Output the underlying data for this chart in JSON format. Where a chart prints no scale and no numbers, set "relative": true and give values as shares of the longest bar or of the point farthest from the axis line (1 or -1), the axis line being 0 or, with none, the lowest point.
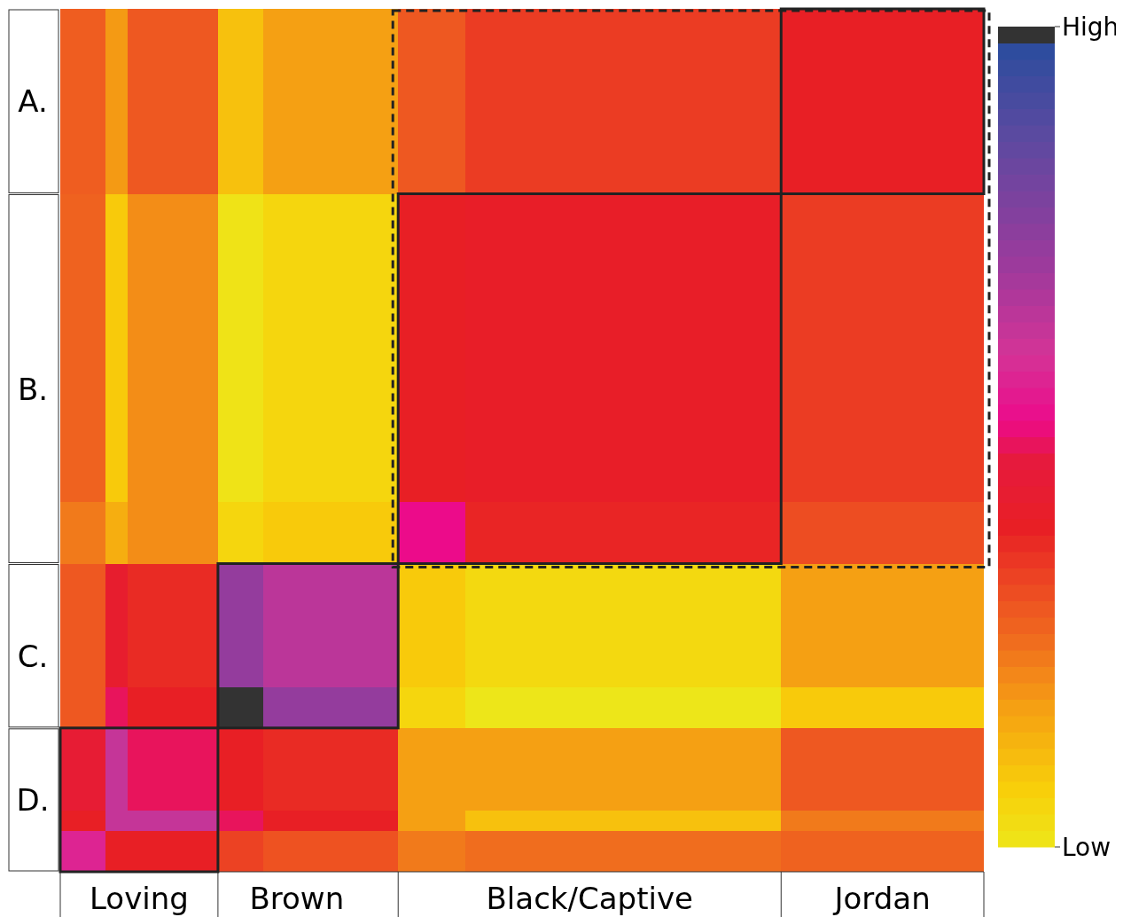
{
  "chart_data": {
    "type": "heatmap",
    "relative": true,
    "clim": [
      0,
      1
    ],
    "cticks": [
      {
        "value": 0,
        "label": "Low"
      },
      {
        "value": 1,
        "label": "High"
      }
    ],
    "categories": [
      null,
      null,
      null,
      "Loving",
      null,
      null,
      null,
      null,
      null,
      null,
      "Brown",
      null,
      null,
      null,
      null,
      null,
      null,
      null,
      null,
      null,
      null,
      null,
      null,
      "Black/Captive",
      null,
      null,
      null,
      null,
      null,
      null,
      null,
      null,
      null,
      null,
      null,
      null,
      "Jordan",
      null,
      null,
      null,
      null
    ],
    "y_categories": [
      null,
      null,
      null,
      null,
      "A.",
      null,
      null,
      null,
      null,
      null,
      null,
      null,
      null,
      null,
      null,
      null,
      null,
      null,
      "B.",
      null,
      null,
      null,
      null,
      null,
      null,
      null,
      null,
      null,
      null,
      null,
      null,
      "C.",
      null,
      null,
      null,
      null,
      null,
      null,
      "D.",
      null,
      null,
      null
    ],
    "cells": [
      [
        0.28,
        0.28,
        0.18,
        0.29,
        0.29,
        0.29,
        0.29,
        0.1,
        0.1,
        0.17,
        0.17,
        0.17,
        0.17,
        0.17,
        0.17,
        0.29,
        0.29,
        0.29,
        0.34,
        0.34,
        0.34,
        0.34,
        0.34,
        0.34,
        0.34,
        0.34,
        0.34,
        0.34,
        0.34,
        0.34,
        0.34,
        0.34,
        0.39,
        0.39,
        0.39,
        0.39,
        0.39,
        0.39,
        0.39,
        0.39,
        0.39
      ],
      [
        0.28,
        0.28,
        0.18,
        0.29,
        0.29,
        0.29,
        0.29,
        0.1,
        0.1,
        0.17,
        0.17,
        0.17,
        0.17,
        0.17,
        0.17,
        0.29,
        0.29,
        0.29,
        0.34,
        0.34,
        0.34,
        0.34,
        0.34,
        0.34,
        0.34,
        0.34,
        0.34,
        0.34,
        0.34,
        0.34,
        0.34,
        0.34,
        0.39,
        0.39,
        0.39,
        0.39,
        0.39,
        0.39,
        0.39,
        0.39,
        0.39
      ],
      [
        0.28,
        0.28,
        0.18,
        0.29,
        0.29,
        0.29,
        0.29,
        0.1,
        0.1,
        0.17,
        0.17,
        0.17,
        0.17,
        0.17,
        0.17,
        0.29,
        0.29,
        0.29,
        0.34,
        0.34,
        0.34,
        0.34,
        0.34,
        0.34,
        0.34,
        0.34,
        0.34,
        0.34,
        0.34,
        0.34,
        0.34,
        0.34,
        0.39,
        0.39,
        0.39,
        0.39,
        0.39,
        0.39,
        0.39,
        0.39,
        0.39
      ],
      [
        0.28,
        0.28,
        0.18,
        0.29,
        0.29,
        0.29,
        0.29,
        0.1,
        0.1,
        0.17,
        0.17,
        0.17,
        0.17,
        0.17,
        0.17,
        0.29,
        0.29,
        0.29,
        0.34,
        0.34,
        0.34,
        0.34,
        0.34,
        0.34,
        0.34,
        0.34,
        0.34,
        0.34,
        0.34,
        0.34,
        0.34,
        0.34,
        0.39,
        0.39,
        0.39,
        0.39,
        0.39,
        0.39,
        0.39,
        0.39,
        0.39
      ],
      [
        0.28,
        0.28,
        0.18,
        0.29,
        0.29,
        0.29,
        0.29,
        0.1,
        0.1,
        0.17,
        0.17,
        0.17,
        0.17,
        0.17,
        0.17,
        0.29,
        0.29,
        0.29,
        0.34,
        0.34,
        0.34,
        0.34,
        0.34,
        0.34,
        0.34,
        0.34,
        0.34,
        0.34,
        0.34,
        0.34,
        0.34,
        0.34,
        0.39,
        0.39,
        0.39,
        0.39,
        0.39,
        0.39,
        0.39,
        0.39,
        0.39
      ],
      [
        0.28,
        0.28,
        0.18,
        0.29,
        0.29,
        0.29,
        0.29,
        0.1,
        0.1,
        0.17,
        0.17,
        0.17,
        0.17,
        0.17,
        0.17,
        0.29,
        0.29,
        0.29,
        0.34,
        0.34,
        0.34,
        0.34,
        0.34,
        0.34,
        0.34,
        0.34,
        0.34,
        0.34,
        0.34,
        0.34,
        0.34,
        0.34,
        0.39,
        0.39,
        0.39,
        0.39,
        0.39,
        0.39,
        0.39,
        0.39,
        0.39
      ],
      [
        0.28,
        0.28,
        0.18,
        0.29,
        0.29,
        0.29,
        0.29,
        0.1,
        0.1,
        0.17,
        0.17,
        0.17,
        0.17,
        0.17,
        0.17,
        0.29,
        0.29,
        0.29,
        0.34,
        0.34,
        0.34,
        0.34,
        0.34,
        0.34,
        0.34,
        0.34,
        0.34,
        0.34,
        0.34,
        0.34,
        0.34,
        0.34,
        0.39,
        0.39,
        0.39,
        0.39,
        0.39,
        0.39,
        0.39,
        0.39,
        0.39
      ],
      [
        0.28,
        0.28,
        0.18,
        0.29,
        0.29,
        0.29,
        0.29,
        0.1,
        0.1,
        0.17,
        0.17,
        0.17,
        0.17,
        0.17,
        0.17,
        0.29,
        0.29,
        0.29,
        0.34,
        0.34,
        0.34,
        0.34,
        0.34,
        0.34,
        0.34,
        0.34,
        0.34,
        0.34,
        0.34,
        0.34,
        0.34,
        0.34,
        0.39,
        0.39,
        0.39,
        0.39,
        0.39,
        0.39,
        0.39,
        0.39,
        0.39
      ],
      [
        0.28,
        0.28,
        0.18,
        0.29,
        0.29,
        0.29,
        0.29,
        0.1,
        0.1,
        0.17,
        0.17,
        0.17,
        0.17,
        0.17,
        0.17,
        0.29,
        0.29,
        0.29,
        0.34,
        0.34,
        0.34,
        0.34,
        0.34,
        0.34,
        0.34,
        0.34,
        0.34,
        0.34,
        0.34,
        0.34,
        0.34,
        0.34,
        0.39,
        0.39,
        0.39,
        0.39,
        0.39,
        0.39,
        0.39,
        0.39,
        0.39
      ],
      [
        0.27,
        0.27,
        0.08,
        0.2,
        0.2,
        0.2,
        0.2,
        0.01,
        0.01,
        0.05,
        0.05,
        0.05,
        0.05,
        0.05,
        0.05,
        0.39,
        0.39,
        0.39,
        0.4,
        0.4,
        0.4,
        0.4,
        0.4,
        0.4,
        0.4,
        0.4,
        0.4,
        0.4,
        0.4,
        0.4,
        0.4,
        0.4,
        0.34,
        0.34,
        0.34,
        0.34,
        0.34,
        0.34,
        0.34,
        0.34,
        0.34
      ],
      [
        0.27,
        0.27,
        0.08,
        0.2,
        0.2,
        0.2,
        0.2,
        0.01,
        0.01,
        0.05,
        0.05,
        0.05,
        0.05,
        0.05,
        0.05,
        0.39,
        0.39,
        0.39,
        0.4,
        0.4,
        0.4,
        0.4,
        0.4,
        0.4,
        0.4,
        0.4,
        0.4,
        0.4,
        0.4,
        0.4,
        0.4,
        0.4,
        0.34,
        0.34,
        0.34,
        0.34,
        0.34,
        0.34,
        0.34,
        0.34,
        0.34
      ],
      [
        0.27,
        0.27,
        0.08,
        0.2,
        0.2,
        0.2,
        0.2,
        0.01,
        0.01,
        0.05,
        0.05,
        0.05,
        0.05,
        0.05,
        0.05,
        0.39,
        0.39,
        0.39,
        0.4,
        0.4,
        0.4,
        0.4,
        0.4,
        0.4,
        0.4,
        0.4,
        0.4,
        0.4,
        0.4,
        0.4,
        0.4,
        0.4,
        0.34,
        0.34,
        0.34,
        0.34,
        0.34,
        0.34,
        0.34,
        0.34,
        0.34
      ],
      [
        0.27,
        0.27,
        0.08,
        0.2,
        0.2,
        0.2,
        0.2,
        0.01,
        0.01,
        0.05,
        0.05,
        0.05,
        0.05,
        0.05,
        0.05,
        0.39,
        0.39,
        0.39,
        0.4,
        0.4,
        0.4,
        0.4,
        0.4,
        0.4,
        0.4,
        0.4,
        0.4,
        0.4,
        0.4,
        0.4,
        0.4,
        0.4,
        0.34,
        0.34,
        0.34,
        0.34,
        0.34,
        0.34,
        0.34,
        0.34,
        0.34
      ],
      [
        0.27,
        0.27,
        0.08,
        0.2,
        0.2,
        0.2,
        0.2,
        0.01,
        0.01,
        0.05,
        0.05,
        0.05,
        0.05,
        0.05,
        0.05,
        0.39,
        0.39,
        0.39,
        0.4,
        0.4,
        0.4,
        0.4,
        0.4,
        0.4,
        0.4,
        0.4,
        0.4,
        0.4,
        0.4,
        0.4,
        0.4,
        0.4,
        0.34,
        0.34,
        0.34,
        0.34,
        0.34,
        0.34,
        0.34,
        0.34,
        0.34
      ],
      [
        0.27,
        0.27,
        0.08,
        0.2,
        0.2,
        0.2,
        0.2,
        0.01,
        0.01,
        0.05,
        0.05,
        0.05,
        0.05,
        0.05,
        0.05,
        0.39,
        0.39,
        0.39,
        0.4,
        0.4,
        0.4,
        0.4,
        0.4,
        0.4,
        0.4,
        0.4,
        0.4,
        0.4,
        0.4,
        0.4,
        0.4,
        0.4,
        0.34,
        0.34,
        0.34,
        0.34,
        0.34,
        0.34,
        0.34,
        0.34,
        0.34
      ],
      [
        0.27,
        0.27,
        0.08,
        0.2,
        0.2,
        0.2,
        0.2,
        0.01,
        0.01,
        0.05,
        0.05,
        0.05,
        0.05,
        0.05,
        0.05,
        0.39,
        0.39,
        0.39,
        0.4,
        0.4,
        0.4,
        0.4,
        0.4,
        0.4,
        0.4,
        0.4,
        0.4,
        0.4,
        0.4,
        0.4,
        0.4,
        0.4,
        0.34,
        0.34,
        0.34,
        0.34,
        0.34,
        0.34,
        0.34,
        0.34,
        0.34
      ],
      [
        0.27,
        0.27,
        0.08,
        0.2,
        0.2,
        0.2,
        0.2,
        0.01,
        0.01,
        0.05,
        0.05,
        0.05,
        0.05,
        0.05,
        0.05,
        0.39,
        0.39,
        0.39,
        0.4,
        0.4,
        0.4,
        0.4,
        0.4,
        0.4,
        0.4,
        0.4,
        0.4,
        0.4,
        0.4,
        0.4,
        0.4,
        0.4,
        0.34,
        0.34,
        0.34,
        0.34,
        0.34,
        0.34,
        0.34,
        0.34,
        0.34
      ],
      [
        0.27,
        0.27,
        0.08,
        0.2,
        0.2,
        0.2,
        0.2,
        0.01,
        0.01,
        0.05,
        0.05,
        0.05,
        0.05,
        0.05,
        0.05,
        0.39,
        0.39,
        0.39,
        0.4,
        0.4,
        0.4,
        0.4,
        0.4,
        0.4,
        0.4,
        0.4,
        0.4,
        0.4,
        0.4,
        0.4,
        0.4,
        0.4,
        0.34,
        0.34,
        0.34,
        0.34,
        0.34,
        0.34,
        0.34,
        0.34,
        0.34
      ],
      [
        0.27,
        0.27,
        0.08,
        0.2,
        0.2,
        0.2,
        0.2,
        0.01,
        0.01,
        0.05,
        0.05,
        0.05,
        0.05,
        0.05,
        0.05,
        0.39,
        0.39,
        0.39,
        0.4,
        0.4,
        0.4,
        0.4,
        0.4,
        0.4,
        0.4,
        0.4,
        0.4,
        0.4,
        0.4,
        0.4,
        0.4,
        0.4,
        0.34,
        0.34,
        0.34,
        0.34,
        0.34,
        0.34,
        0.34,
        0.34,
        0.34
      ],
      [
        0.27,
        0.27,
        0.08,
        0.2,
        0.2,
        0.2,
        0.2,
        0.01,
        0.01,
        0.05,
        0.05,
        0.05,
        0.05,
        0.05,
        0.05,
        0.39,
        0.39,
        0.39,
        0.4,
        0.4,
        0.4,
        0.4,
        0.4,
        0.4,
        0.4,
        0.4,
        0.4,
        0.4,
        0.4,
        0.4,
        0.4,
        0.4,
        0.34,
        0.34,
        0.34,
        0.34,
        0.34,
        0.34,
        0.34,
        0.34,
        0.34
      ],
      [
        0.27,
        0.27,
        0.08,
        0.2,
        0.2,
        0.2,
        0.2,
        0.01,
        0.01,
        0.05,
        0.05,
        0.05,
        0.05,
        0.05,
        0.05,
        0.39,
        0.39,
        0.39,
        0.4,
        0.4,
        0.4,
        0.4,
        0.4,
        0.4,
        0.4,
        0.4,
        0.4,
        0.4,
        0.4,
        0.4,
        0.4,
        0.4,
        0.34,
        0.34,
        0.34,
        0.34,
        0.34,
        0.34,
        0.34,
        0.34,
        0.34
      ],
      [
        0.27,
        0.27,
        0.08,
        0.2,
        0.2,
        0.2,
        0.2,
        0.01,
        0.01,
        0.05,
        0.05,
        0.05,
        0.05,
        0.05,
        0.05,
        0.39,
        0.39,
        0.39,
        0.4,
        0.4,
        0.4,
        0.4,
        0.4,
        0.4,
        0.4,
        0.4,
        0.4,
        0.4,
        0.4,
        0.4,
        0.4,
        0.4,
        0.34,
        0.34,
        0.34,
        0.34,
        0.34,
        0.34,
        0.34,
        0.34,
        0.34
      ],
      [
        0.27,
        0.27,
        0.08,
        0.2,
        0.2,
        0.2,
        0.2,
        0.01,
        0.01,
        0.05,
        0.05,
        0.05,
        0.05,
        0.05,
        0.05,
        0.39,
        0.39,
        0.39,
        0.4,
        0.4,
        0.4,
        0.4,
        0.4,
        0.4,
        0.4,
        0.4,
        0.4,
        0.4,
        0.4,
        0.4,
        0.4,
        0.4,
        0.34,
        0.34,
        0.34,
        0.34,
        0.34,
        0.34,
        0.34,
        0.34,
        0.34
      ],
      [
        0.27,
        0.27,
        0.08,
        0.2,
        0.2,
        0.2,
        0.2,
        0.01,
        0.01,
        0.05,
        0.05,
        0.05,
        0.05,
        0.05,
        0.05,
        0.39,
        0.39,
        0.39,
        0.4,
        0.4,
        0.4,
        0.4,
        0.4,
        0.4,
        0.4,
        0.4,
        0.4,
        0.4,
        0.4,
        0.4,
        0.4,
        0.4,
        0.34,
        0.34,
        0.34,
        0.34,
        0.34,
        0.34,
        0.34,
        0.34,
        0.34
      ],
      [
        0.23,
        0.23,
        0.14,
        0.2,
        0.2,
        0.2,
        0.2,
        0.05,
        0.05,
        0.08,
        0.08,
        0.08,
        0.08,
        0.08,
        0.08,
        0.52,
        0.52,
        0.52,
        0.38,
        0.38,
        0.38,
        0.38,
        0.38,
        0.38,
        0.38,
        0.38,
        0.38,
        0.38,
        0.38,
        0.38,
        0.38,
        0.38,
        0.31,
        0.31,
        0.31,
        0.31,
        0.31,
        0.31,
        0.31,
        0.31,
        0.31
      ],
      [
        0.23,
        0.23,
        0.14,
        0.2,
        0.2,
        0.2,
        0.2,
        0.05,
        0.05,
        0.08,
        0.08,
        0.08,
        0.08,
        0.08,
        0.08,
        0.52,
        0.52,
        0.52,
        0.38,
        0.38,
        0.38,
        0.38,
        0.38,
        0.38,
        0.38,
        0.38,
        0.38,
        0.38,
        0.38,
        0.38,
        0.38,
        0.38,
        0.31,
        0.31,
        0.31,
        0.31,
        0.31,
        0.31,
        0.31,
        0.31,
        0.31
      ],
      [
        0.23,
        0.23,
        0.14,
        0.2,
        0.2,
        0.2,
        0.2,
        0.05,
        0.05,
        0.08,
        0.08,
        0.08,
        0.08,
        0.08,
        0.08,
        0.52,
        0.52,
        0.52,
        0.38,
        0.38,
        0.38,
        0.38,
        0.38,
        0.38,
        0.38,
        0.38,
        0.38,
        0.38,
        0.38,
        0.38,
        0.38,
        0.38,
        0.31,
        0.31,
        0.31,
        0.31,
        0.31,
        0.31,
        0.31,
        0.31,
        0.31
      ],
      [
        0.29,
        0.29,
        0.42,
        0.37,
        0.37,
        0.37,
        0.37,
        0.73,
        0.73,
        0.65,
        0.65,
        0.65,
        0.65,
        0.65,
        0.65,
        0.08,
        0.08,
        0.08,
        0.04,
        0.04,
        0.04,
        0.04,
        0.04,
        0.04,
        0.04,
        0.04,
        0.04,
        0.04,
        0.04,
        0.04,
        0.04,
        0.04,
        0.17,
        0.17,
        0.17,
        0.17,
        0.17,
        0.17,
        0.17,
        0.17,
        0.17
      ],
      [
        0.29,
        0.29,
        0.42,
        0.37,
        0.37,
        0.37,
        0.37,
        0.73,
        0.73,
        0.65,
        0.65,
        0.65,
        0.65,
        0.65,
        0.65,
        0.08,
        0.08,
        0.08,
        0.04,
        0.04,
        0.04,
        0.04,
        0.04,
        0.04,
        0.04,
        0.04,
        0.04,
        0.04,
        0.04,
        0.04,
        0.04,
        0.04,
        0.17,
        0.17,
        0.17,
        0.17,
        0.17,
        0.17,
        0.17,
        0.17,
        0.17
      ],
      [
        0.29,
        0.29,
        0.42,
        0.37,
        0.37,
        0.37,
        0.37,
        0.73,
        0.73,
        0.65,
        0.65,
        0.65,
        0.65,
        0.65,
        0.65,
        0.08,
        0.08,
        0.08,
        0.04,
        0.04,
        0.04,
        0.04,
        0.04,
        0.04,
        0.04,
        0.04,
        0.04,
        0.04,
        0.04,
        0.04,
        0.04,
        0.04,
        0.17,
        0.17,
        0.17,
        0.17,
        0.17,
        0.17,
        0.17,
        0.17,
        0.17
      ],
      [
        0.29,
        0.29,
        0.42,
        0.37,
        0.37,
        0.37,
        0.37,
        0.73,
        0.73,
        0.65,
        0.65,
        0.65,
        0.65,
        0.65,
        0.65,
        0.08,
        0.08,
        0.08,
        0.04,
        0.04,
        0.04,
        0.04,
        0.04,
        0.04,
        0.04,
        0.04,
        0.04,
        0.04,
        0.04,
        0.04,
        0.04,
        0.04,
        0.17,
        0.17,
        0.17,
        0.17,
        0.17,
        0.17,
        0.17,
        0.17,
        0.17
      ],
      [
        0.29,
        0.29,
        0.42,
        0.37,
        0.37,
        0.37,
        0.37,
        0.73,
        0.73,
        0.65,
        0.65,
        0.65,
        0.65,
        0.65,
        0.65,
        0.08,
        0.08,
        0.08,
        0.04,
        0.04,
        0.04,
        0.04,
        0.04,
        0.04,
        0.04,
        0.04,
        0.04,
        0.04,
        0.04,
        0.04,
        0.04,
        0.04,
        0.17,
        0.17,
        0.17,
        0.17,
        0.17,
        0.17,
        0.17,
        0.17,
        0.17
      ],
      [
        0.29,
        0.29,
        0.42,
        0.37,
        0.37,
        0.37,
        0.37,
        0.73,
        0.73,
        0.65,
        0.65,
        0.65,
        0.65,
        0.65,
        0.65,
        0.08,
        0.08,
        0.08,
        0.04,
        0.04,
        0.04,
        0.04,
        0.04,
        0.04,
        0.04,
        0.04,
        0.04,
        0.04,
        0.04,
        0.04,
        0.04,
        0.04,
        0.17,
        0.17,
        0.17,
        0.17,
        0.17,
        0.17,
        0.17,
        0.17,
        0.17
      ],
      [
        0.29,
        0.29,
        0.49,
        0.39,
        0.39,
        0.39,
        0.39,
        1.0,
        1.0,
        0.73,
        0.73,
        0.73,
        0.73,
        0.73,
        0.73,
        0.05,
        0.05,
        0.05,
        0.0,
        0.0,
        0.0,
        0.0,
        0.0,
        0.0,
        0.0,
        0.0,
        0.0,
        0.0,
        0.0,
        0.0,
        0.0,
        0.0,
        0.08,
        0.08,
        0.08,
        0.08,
        0.08,
        0.08,
        0.08,
        0.08,
        0.08
      ],
      [
        0.29,
        0.29,
        0.49,
        0.39,
        0.39,
        0.39,
        0.39,
        1.0,
        1.0,
        0.73,
        0.73,
        0.73,
        0.73,
        0.73,
        0.73,
        0.05,
        0.05,
        0.05,
        0.0,
        0.0,
        0.0,
        0.0,
        0.0,
        0.0,
        0.0,
        0.0,
        0.0,
        0.0,
        0.0,
        0.0,
        0.0,
        0.0,
        0.08,
        0.08,
        0.08,
        0.08,
        0.08,
        0.08,
        0.08,
        0.08,
        0.08
      ],
      [
        0.44,
        0.44,
        0.63,
        0.49,
        0.49,
        0.49,
        0.49,
        0.39,
        0.39,
        0.37,
        0.37,
        0.37,
        0.37,
        0.37,
        0.37,
        0.17,
        0.17,
        0.17,
        0.17,
        0.17,
        0.17,
        0.17,
        0.17,
        0.17,
        0.17,
        0.17,
        0.17,
        0.17,
        0.17,
        0.17,
        0.17,
        0.17,
        0.29,
        0.29,
        0.29,
        0.29,
        0.29,
        0.29,
        0.29,
        0.29,
        0.29
      ],
      [
        0.44,
        0.44,
        0.63,
        0.49,
        0.49,
        0.49,
        0.49,
        0.39,
        0.39,
        0.37,
        0.37,
        0.37,
        0.37,
        0.37,
        0.37,
        0.17,
        0.17,
        0.17,
        0.17,
        0.17,
        0.17,
        0.17,
        0.17,
        0.17,
        0.17,
        0.17,
        0.17,
        0.17,
        0.17,
        0.17,
        0.17,
        0.17,
        0.29,
        0.29,
        0.29,
        0.29,
        0.29,
        0.29,
        0.29,
        0.29,
        0.29
      ],
      [
        0.44,
        0.44,
        0.63,
        0.49,
        0.49,
        0.49,
        0.49,
        0.39,
        0.39,
        0.37,
        0.37,
        0.37,
        0.37,
        0.37,
        0.37,
        0.17,
        0.17,
        0.17,
        0.17,
        0.17,
        0.17,
        0.17,
        0.17,
        0.17,
        0.17,
        0.17,
        0.17,
        0.17,
        0.17,
        0.17,
        0.17,
        0.17,
        0.29,
        0.29,
        0.29,
        0.29,
        0.29,
        0.29,
        0.29,
        0.29,
        0.29
      ],
      [
        0.44,
        0.44,
        0.63,
        0.49,
        0.49,
        0.49,
        0.49,
        0.39,
        0.39,
        0.37,
        0.37,
        0.37,
        0.37,
        0.37,
        0.37,
        0.17,
        0.17,
        0.17,
        0.17,
        0.17,
        0.17,
        0.17,
        0.17,
        0.17,
        0.17,
        0.17,
        0.17,
        0.17,
        0.17,
        0.17,
        0.17,
        0.17,
        0.29,
        0.29,
        0.29,
        0.29,
        0.29,
        0.29,
        0.29,
        0.29,
        0.29
      ],
      [
        0.39,
        0.39,
        0.63,
        0.63,
        0.63,
        0.63,
        0.63,
        0.49,
        0.49,
        0.39,
        0.39,
        0.39,
        0.39,
        0.39,
        0.39,
        0.17,
        0.17,
        0.17,
        0.1,
        0.1,
        0.1,
        0.1,
        0.1,
        0.1,
        0.1,
        0.1,
        0.1,
        0.1,
        0.1,
        0.1,
        0.1,
        0.1,
        0.23,
        0.23,
        0.23,
        0.23,
        0.23,
        0.23,
        0.23,
        0.23,
        0.23
      ],
      [
        0.57,
        0.57,
        0.39,
        0.39,
        0.39,
        0.39,
        0.39,
        0.33,
        0.33,
        0.3,
        0.3,
        0.3,
        0.3,
        0.3,
        0.3,
        0.23,
        0.23,
        0.23,
        0.25,
        0.25,
        0.25,
        0.25,
        0.25,
        0.25,
        0.25,
        0.25,
        0.25,
        0.25,
        0.25,
        0.25,
        0.25,
        0.25,
        0.27,
        0.27,
        0.27,
        0.27,
        0.27,
        0.27,
        0.27,
        0.27,
        0.27
      ],
      [
        0.57,
        0.57,
        0.39,
        0.39,
        0.39,
        0.39,
        0.39,
        0.33,
        0.33,
        0.3,
        0.3,
        0.3,
        0.3,
        0.3,
        0.3,
        0.23,
        0.23,
        0.23,
        0.25,
        0.25,
        0.25,
        0.25,
        0.25,
        0.25,
        0.25,
        0.25,
        0.25,
        0.25,
        0.25,
        0.25,
        0.25,
        0.25,
        0.27,
        0.27,
        0.27,
        0.27,
        0.27,
        0.27,
        0.27,
        0.27,
        0.27
      ]
    ],
    "grid": false
  }
}
